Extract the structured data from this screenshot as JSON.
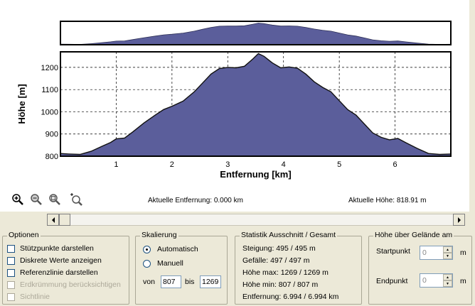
{
  "chart_data": {
    "type": "area",
    "xlabel": "Entfernung [km]",
    "ylabel": "Höhe [m]",
    "xlim": [
      0,
      7
    ],
    "ylim": [
      800,
      1270
    ],
    "xticks": [
      1,
      2,
      3,
      4,
      5,
      6
    ],
    "yticks": [
      800,
      900,
      1000,
      1100,
      1200
    ],
    "grid": true,
    "fill_color": "#5b5e9b",
    "profile": {
      "x": [
        0,
        0.15,
        0.35,
        0.55,
        0.75,
        0.9,
        1.0,
        1.15,
        1.3,
        1.5,
        1.7,
        1.85,
        2.0,
        2.2,
        2.4,
        2.55,
        2.7,
        2.85,
        3.0,
        3.15,
        3.3,
        3.45,
        3.55,
        3.65,
        3.8,
        3.95,
        4.1,
        4.25,
        4.4,
        4.55,
        4.7,
        4.85,
        5.0,
        5.15,
        5.3,
        5.45,
        5.6,
        5.75,
        5.9,
        6.05,
        6.2,
        6.4,
        6.6,
        6.8,
        7.0
      ],
      "y": [
        812,
        810,
        808,
        822,
        845,
        862,
        878,
        882,
        910,
        950,
        985,
        1010,
        1025,
        1048,
        1090,
        1130,
        1170,
        1195,
        1200,
        1198,
        1205,
        1238,
        1262,
        1250,
        1220,
        1198,
        1202,
        1196,
        1170,
        1135,
        1110,
        1090,
        1050,
        1010,
        985,
        945,
        905,
        885,
        874,
        880,
        860,
        835,
        812,
        808,
        810
      ]
    }
  },
  "toolbar": {
    "zoom_in_icon": "zoom-in-icon",
    "zoom_out_icon": "zoom-out-icon",
    "zoom_box_icon": "zoom-box-icon",
    "zoom_all_icon": "zoom-extent-icon",
    "current_distance": "Aktuelle Entfernung: 0.000 km",
    "current_height": "Aktuelle Höhe: 818.91 m"
  },
  "options": {
    "title": "Optionen",
    "items": [
      {
        "label": "Stützpunkte darstellen",
        "checked": false,
        "disabled": false
      },
      {
        "label": "Diskrete Werte anzeigen",
        "checked": false,
        "disabled": false
      },
      {
        "label": "Referenzlinie darstellen",
        "checked": false,
        "disabled": false
      },
      {
        "label": "Erdkrümmung berücksichtigen",
        "checked": false,
        "disabled": true
      },
      {
        "label": "Sichtlinie",
        "checked": false,
        "disabled": true
      }
    ]
  },
  "scaling": {
    "title": "Skalierung",
    "auto_label": "Automatisch",
    "manual_label": "Manuell",
    "from_label": "von",
    "from_value": "807",
    "to_label": "bis",
    "to_value": "1269"
  },
  "statistics": {
    "title": "Statistik   Ausschnitt / Gesamt",
    "lines": [
      "Steigung: 495 / 495 m",
      "Gefälle: 497 / 497 m",
      "Höhe max: 1269 / 1269 m",
      "Höhe min: 807 / 807 m",
      "Entfernung: 6.994 / 6.994 km"
    ]
  },
  "height_above": {
    "title": "Höhe über Gelände am",
    "start_label": "Startpunkt",
    "start_value": "0",
    "end_label": "Endpunkt",
    "end_value": "0",
    "unit": "m"
  }
}
